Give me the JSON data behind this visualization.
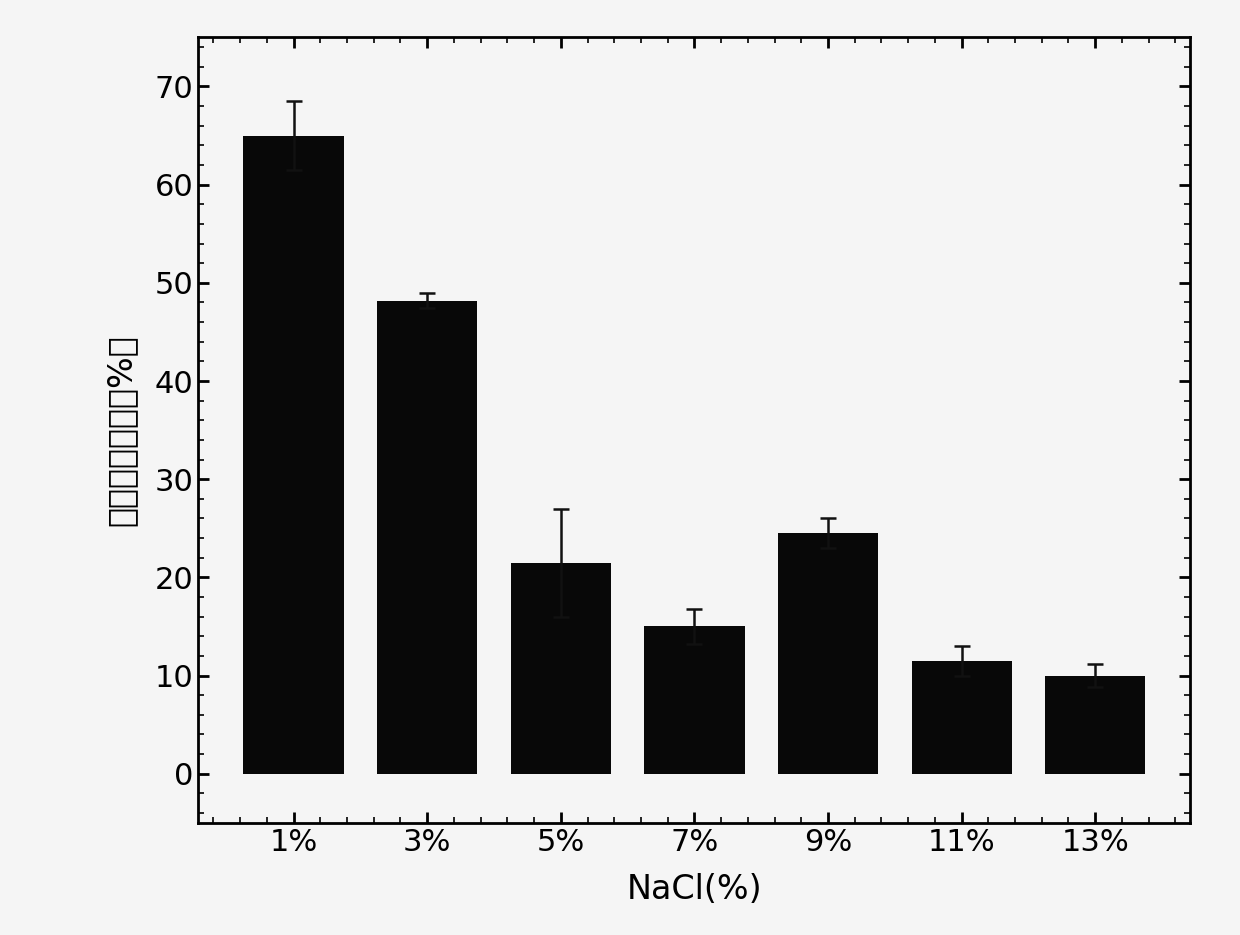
{
  "categories": [
    "1%",
    "3%",
    "5%",
    "7%",
    "9%",
    "11%",
    "13%"
  ],
  "values": [
    65.0,
    48.2,
    21.5,
    15.0,
    24.5,
    11.5,
    10.0
  ],
  "errors": [
    3.5,
    0.8,
    5.5,
    1.8,
    1.5,
    1.5,
    1.2
  ],
  "bar_color": "#080808",
  "xlabel": "NaCl(%)",
  "ylabel": "生物胺降解率（%）",
  "ylim": [
    -5,
    75
  ],
  "yticks": [
    0,
    10,
    20,
    30,
    40,
    50,
    60,
    70
  ],
  "background_color": "#f5f5f5",
  "bar_width": 0.75,
  "xlabel_fontsize": 24,
  "ylabel_fontsize": 24,
  "tick_fontsize": 22,
  "capsize": 6,
  "elinewidth": 1.8,
  "ecapthick": 1.8
}
